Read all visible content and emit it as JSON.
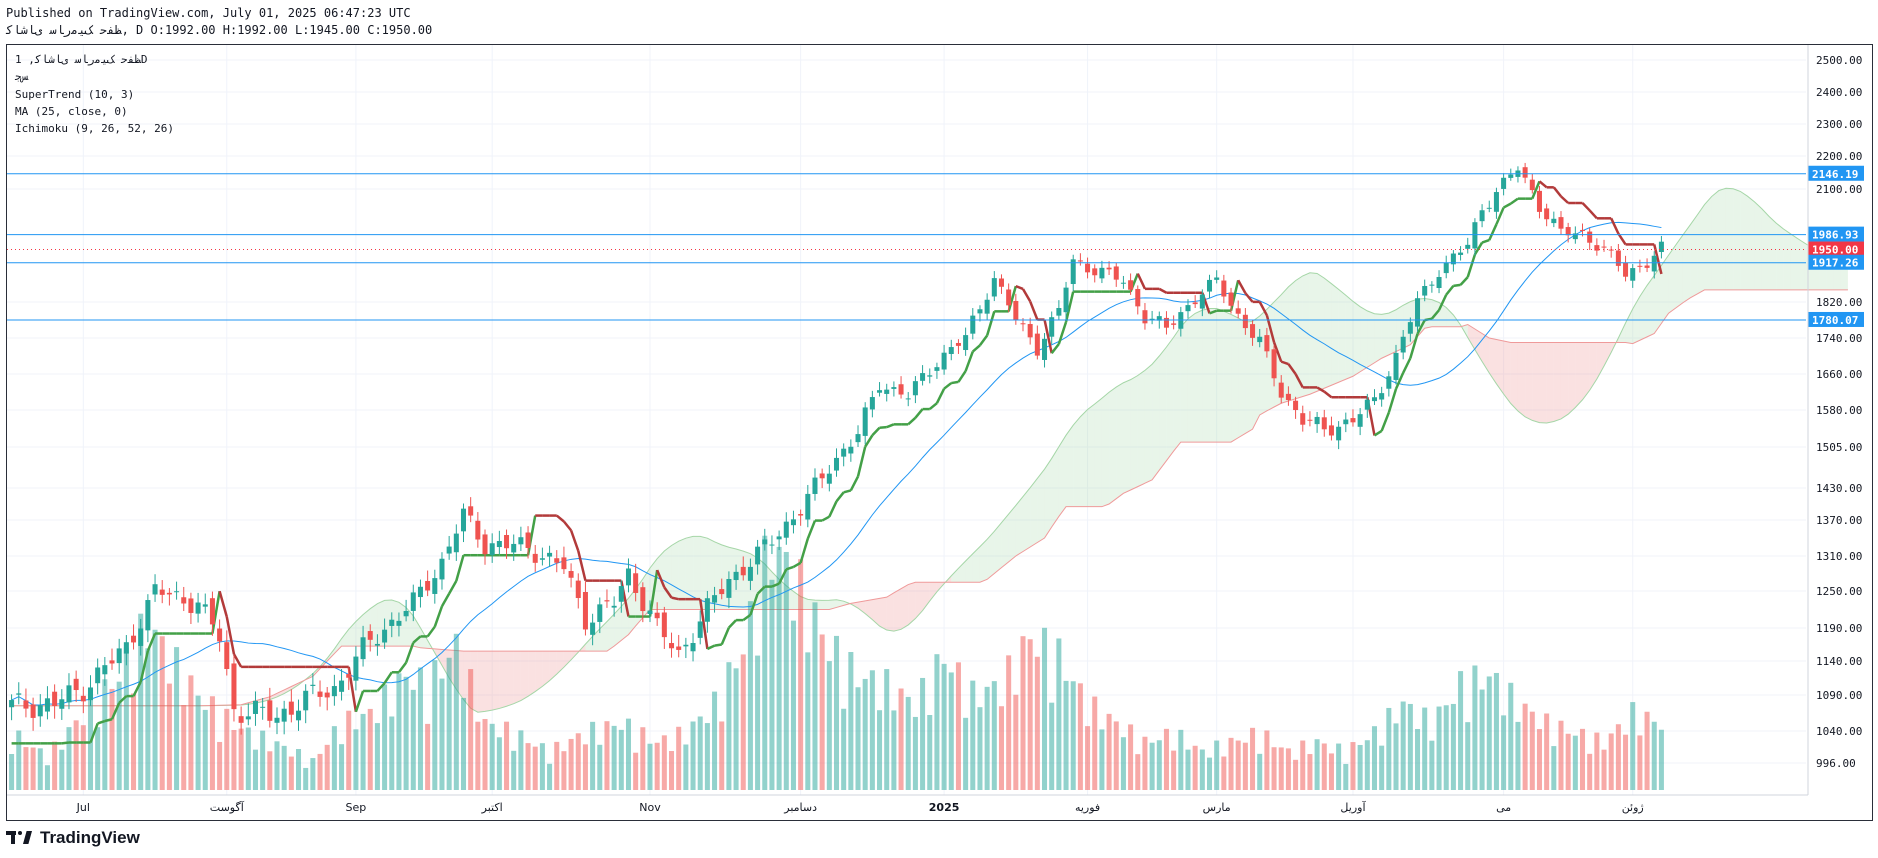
{
  "header": {
    "published": "Published on TradingView.com, July 01, 2025 06:47:23 UTC",
    "ohlc": "ﻆﻔﺣ ﮏﯿﻣﺭﺎﺳ ﯼﺎﺷﺎﮐ, D O:1992.00 H:1992.00 L:1945.00 C:1950.00"
  },
  "legend": {
    "symbol": "ﻆﻔﺣ ﮏﯿﻣﺭﺎﺳ ﯼﺎﺷﺎﮐ, 1D",
    "exchange": "ﺲﺟ",
    "supertrend": "SuperTrend (10, 3)",
    "ma": "MA (25, close, 0)",
    "ichimoku": "Ichimoku (9, 26, 52, 26)"
  },
  "footer": {
    "brand": "TradingView"
  },
  "colors": {
    "up": "#26a69a",
    "down": "#ef5350",
    "supertrend_up": "#43a047",
    "supertrend_down": "#b23a3a",
    "ma": "#2196f3",
    "cloud_up": "#a5d6a7",
    "cloud_down": "#ef9a9a",
    "hline": "#2196f3",
    "price": "#f23645"
  },
  "chart_data": {
    "type": "candlestick",
    "title": "ﻆﻔﺣ ﮏﯿﻣﺭﺎﺳ ﯼﺎﺷﺎﮐ, 1D",
    "y_ticks": [
      {
        "label": "2500.00",
        "v": 2500
      },
      {
        "label": "2400.00",
        "v": 2400
      },
      {
        "label": "2300.00",
        "v": 2300
      },
      {
        "label": "2200.00",
        "v": 2200
      },
      {
        "label": "2100.00",
        "v": 2100
      },
      {
        "label": "1820.00",
        "v": 1820
      },
      {
        "label": "1740.00",
        "v": 1740
      },
      {
        "label": "1660.00",
        "v": 1660
      },
      {
        "label": "1580.00",
        "v": 1580
      },
      {
        "label": "1505.00",
        "v": 1505
      },
      {
        "label": "1430.00",
        "v": 1430
      },
      {
        "label": "1370.00",
        "v": 1370
      },
      {
        "label": "1310.00",
        "v": 1310
      },
      {
        "label": "1250.00",
        "v": 1250
      },
      {
        "label": "1190.00",
        "v": 1190
      },
      {
        "label": "1140.00",
        "v": 1140
      },
      {
        "label": "1090.00",
        "v": 1090
      },
      {
        "label": "1040.00",
        "v": 1040
      },
      {
        "label": "996.00",
        "v": 996
      }
    ],
    "x_ticks": [
      {
        "label": "Jul",
        "i": 10
      },
      {
        "label": "آگوست",
        "i": 30
      },
      {
        "label": "Sep",
        "i": 48
      },
      {
        "label": "اکتبر",
        "i": 67
      },
      {
        "label": "Nov",
        "i": 89
      },
      {
        "label": "دسامبر",
        "i": 110
      },
      {
        "label": "2025",
        "i": 130
      },
      {
        "label": "فوریه",
        "i": 150
      },
      {
        "label": "مارس",
        "i": 168
      },
      {
        "label": "آوریل",
        "i": 187
      },
      {
        "label": "می",
        "i": 208
      },
      {
        "label": "ژوئن",
        "i": 226
      }
    ],
    "price_labels": [
      {
        "label": "2146.19",
        "v": 2146.19,
        "kind": "line"
      },
      {
        "label": "1986.93",
        "v": 1986.93,
        "kind": "line"
      },
      {
        "label": "1950.00",
        "v": 1950.0,
        "kind": "last"
      },
      {
        "label": "1917.26",
        "v": 1917.26,
        "kind": "line"
      },
      {
        "label": "1780.07",
        "v": 1780.07,
        "kind": "line"
      }
    ],
    "anchors": [
      [
        0,
        1075
      ],
      [
        6,
        1078
      ],
      [
        10,
        1100
      ],
      [
        16,
        1160
      ],
      [
        20,
        1250
      ],
      [
        26,
        1230
      ],
      [
        29,
        1175
      ],
      [
        31,
        1070
      ],
      [
        37,
        1060
      ],
      [
        40,
        1080
      ],
      [
        45,
        1100
      ],
      [
        50,
        1170
      ],
      [
        56,
        1230
      ],
      [
        60,
        1300
      ],
      [
        63,
        1380
      ],
      [
        66,
        1330
      ],
      [
        72,
        1325
      ],
      [
        77,
        1290
      ],
      [
        80,
        1205
      ],
      [
        84,
        1230
      ],
      [
        86,
        1280
      ],
      [
        90,
        1190
      ],
      [
        93,
        1150
      ],
      [
        97,
        1220
      ],
      [
        100,
        1270
      ],
      [
        104,
        1310
      ],
      [
        110,
        1390
      ],
      [
        114,
        1470
      ],
      [
        118,
        1530
      ],
      [
        121,
        1640
      ],
      [
        125,
        1610
      ],
      [
        129,
        1690
      ],
      [
        133,
        1740
      ],
      [
        137,
        1880
      ],
      [
        140,
        1780
      ],
      [
        143,
        1720
      ],
      [
        146,
        1800
      ],
      [
        148,
        1920
      ],
      [
        152,
        1895
      ],
      [
        155,
        1870
      ],
      [
        158,
        1790
      ],
      [
        161,
        1760
      ],
      [
        165,
        1830
      ],
      [
        168,
        1870
      ],
      [
        171,
        1790
      ],
      [
        174,
        1730
      ],
      [
        177,
        1620
      ],
      [
        180,
        1560
      ],
      [
        183,
        1540
      ],
      [
        187,
        1560
      ],
      [
        190,
        1600
      ],
      [
        193,
        1700
      ],
      [
        196,
        1820
      ],
      [
        199,
        1900
      ],
      [
        203,
        1960
      ],
      [
        205,
        2050
      ],
      [
        208,
        2120
      ],
      [
        210,
        2160
      ],
      [
        213,
        2060
      ],
      [
        216,
        1990
      ],
      [
        219,
        1990
      ],
      [
        222,
        1950
      ],
      [
        225,
        1890
      ],
      [
        228,
        1920
      ],
      [
        230,
        1950
      ]
    ],
    "volume_anchors": [
      [
        0,
        60
      ],
      [
        5,
        35
      ],
      [
        10,
        80
      ],
      [
        15,
        120
      ],
      [
        19,
        175
      ],
      [
        22,
        140
      ],
      [
        26,
        100
      ],
      [
        29,
        80
      ],
      [
        33,
        60
      ],
      [
        38,
        45
      ],
      [
        42,
        30
      ],
      [
        46,
        70
      ],
      [
        50,
        80
      ],
      [
        55,
        120
      ],
      [
        58,
        110
      ],
      [
        62,
        150
      ],
      [
        66,
        70
      ],
      [
        70,
        60
      ],
      [
        75,
        40
      ],
      [
        80,
        60
      ],
      [
        85,
        70
      ],
      [
        90,
        50
      ],
      [
        94,
        60
      ],
      [
        98,
        90
      ],
      [
        102,
        150
      ],
      [
        106,
        260
      ],
      [
        110,
        210
      ],
      [
        114,
        150
      ],
      [
        118,
        120
      ],
      [
        122,
        110
      ],
      [
        126,
        90
      ],
      [
        130,
        140
      ],
      [
        134,
        100
      ],
      [
        138,
        110
      ],
      [
        142,
        160
      ],
      [
        146,
        140
      ],
      [
        150,
        90
      ],
      [
        154,
        70
      ],
      [
        158,
        50
      ],
      [
        162,
        60
      ],
      [
        166,
        40
      ],
      [
        170,
        50
      ],
      [
        174,
        60
      ],
      [
        178,
        40
      ],
      [
        182,
        50
      ],
      [
        186,
        40
      ],
      [
        190,
        60
      ],
      [
        194,
        90
      ],
      [
        198,
        70
      ],
      [
        202,
        110
      ],
      [
        206,
        120
      ],
      [
        210,
        90
      ],
      [
        214,
        70
      ],
      [
        218,
        60
      ],
      [
        222,
        50
      ],
      [
        226,
        80
      ],
      [
        230,
        70
      ]
    ],
    "n_bars": 231,
    "ylim": [
      960,
      2560
    ]
  }
}
